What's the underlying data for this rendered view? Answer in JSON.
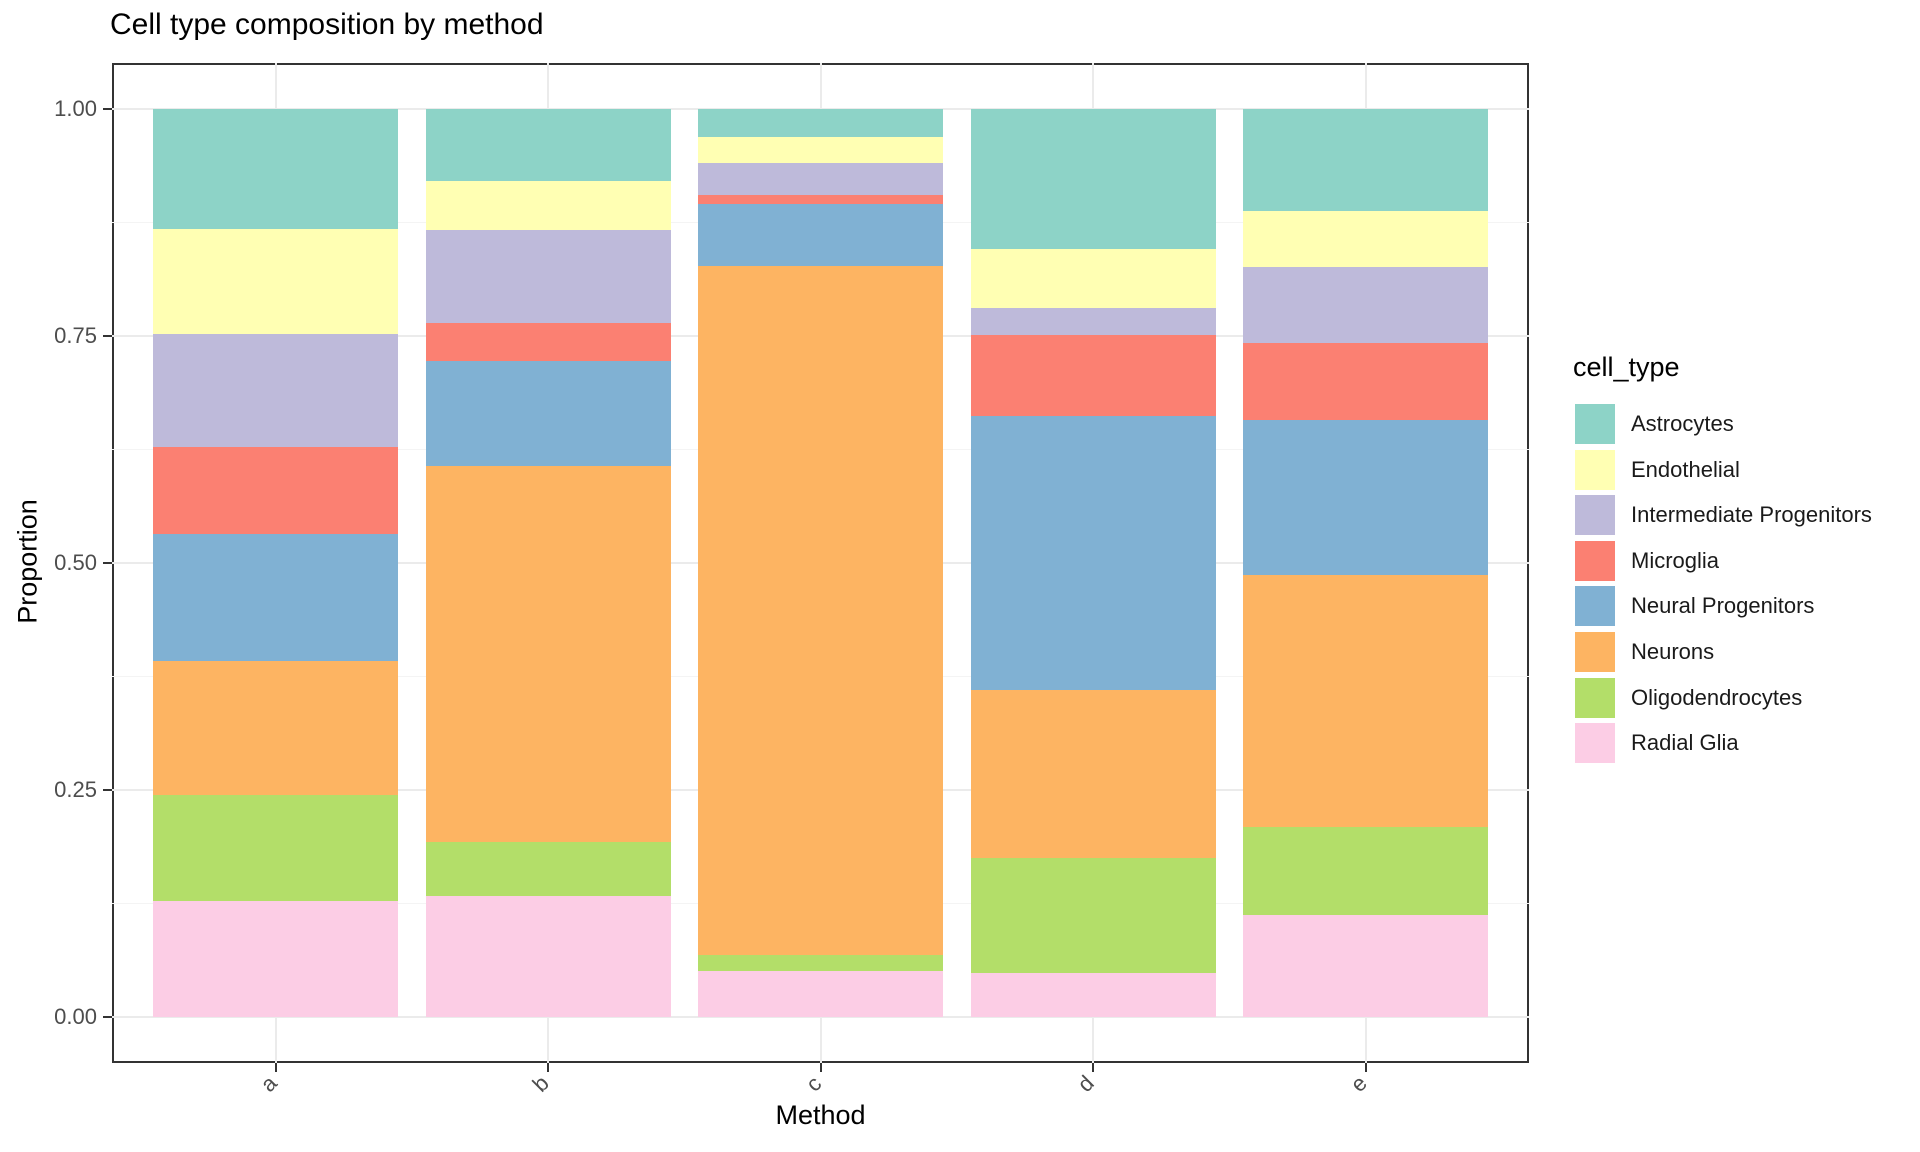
{
  "title": "Cell type composition by method",
  "x_axis": {
    "label": "Method",
    "categories": [
      "a",
      "b",
      "c",
      "d",
      "e"
    ]
  },
  "y_axis": {
    "label": "Proportion",
    "ticks": [
      {
        "label": "0.00",
        "value": 0.0
      },
      {
        "label": "0.25",
        "value": 0.25
      },
      {
        "label": "0.50",
        "value": 0.5
      },
      {
        "label": "0.75",
        "value": 0.75
      },
      {
        "label": "1.00",
        "value": 1.0
      }
    ],
    "minor_ticks": [
      0.125,
      0.375,
      0.625,
      0.875
    ]
  },
  "legend": {
    "title": "cell_type"
  },
  "chart_data": {
    "type": "bar",
    "stacked": true,
    "normalized": true,
    "title": "Cell type composition by method",
    "xlabel": "Method",
    "ylabel": "Proportion",
    "ylim": [
      0,
      1
    ],
    "grid": true,
    "legend_position": "right",
    "legend_title": "cell_type",
    "categories": [
      "a",
      "b",
      "c",
      "d",
      "e"
    ],
    "series": [
      {
        "name": "Astrocytes",
        "color": "#8DD3C7",
        "values": [
          0.132,
          0.079,
          0.031,
          0.154,
          0.112
        ]
      },
      {
        "name": "Endothelial",
        "color": "#FFFFB3",
        "values": [
          0.116,
          0.054,
          0.028,
          0.065,
          0.062
        ]
      },
      {
        "name": "Intermediate Progenitors",
        "color": "#BEBADA",
        "values": [
          0.124,
          0.103,
          0.036,
          0.03,
          0.084
        ]
      },
      {
        "name": "Microglia",
        "color": "#FB8072",
        "values": [
          0.096,
          0.042,
          0.01,
          0.089,
          0.085
        ]
      },
      {
        "name": "Neural Progenitors",
        "color": "#80B1D3",
        "values": [
          0.14,
          0.115,
          0.068,
          0.302,
          0.17
        ]
      },
      {
        "name": "Neurons",
        "color": "#FDB462",
        "values": [
          0.147,
          0.414,
          0.759,
          0.185,
          0.278
        ]
      },
      {
        "name": "Oligodendrocytes",
        "color": "#B3DE69",
        "values": [
          0.117,
          0.06,
          0.017,
          0.126,
          0.097
        ]
      },
      {
        "name": "Radial Glia",
        "color": "#FCCDE5",
        "values": [
          0.128,
          0.133,
          0.051,
          0.049,
          0.112
        ]
      }
    ],
    "colors": {
      "grid_major": "#EBEBEB",
      "grid_minor": "#F4F4F4",
      "panel_border": "#333333",
      "axis_text": "#4D4D4D"
    }
  }
}
